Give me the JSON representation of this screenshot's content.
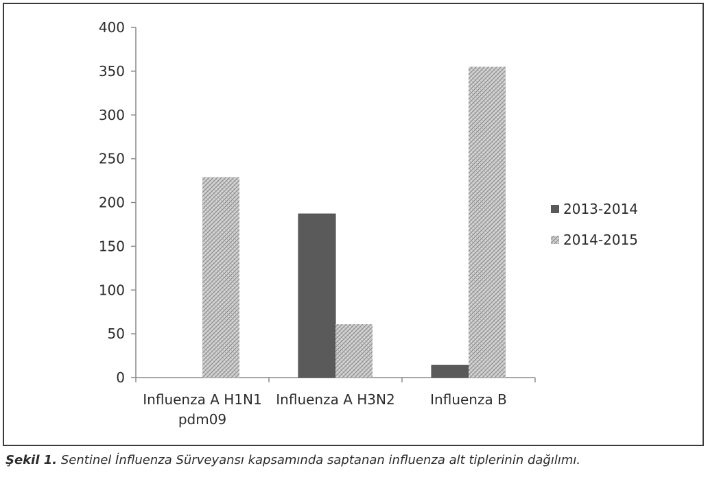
{
  "chart_data": {
    "type": "bar",
    "categories": [
      [
        "Influenza A H1N1",
        "pdm09"
      ],
      [
        "Influenza A H3N2"
      ],
      [
        "Influenza B"
      ]
    ],
    "series": [
      {
        "name": "2013-2014",
        "values": [
          0,
          187,
          14
        ],
        "color": "#5a5a5a",
        "pattern": "solid"
      },
      {
        "name": "2014-2015",
        "values": [
          229,
          61,
          355
        ],
        "color": "#bdbdbd",
        "pattern": "hatch"
      }
    ],
    "ylim": [
      0,
      400
    ],
    "yticks": [
      0,
      50,
      100,
      150,
      200,
      250,
      300,
      350,
      400
    ],
    "grid": false,
    "legend_position": "right",
    "title": "",
    "xlabel": "",
    "ylabel": ""
  },
  "caption": {
    "lead": "Şekil 1.",
    "text": " Sentinel İnfluenza Sürveyansı kapsamında saptanan influenza alt tiplerinin dağılımı."
  }
}
